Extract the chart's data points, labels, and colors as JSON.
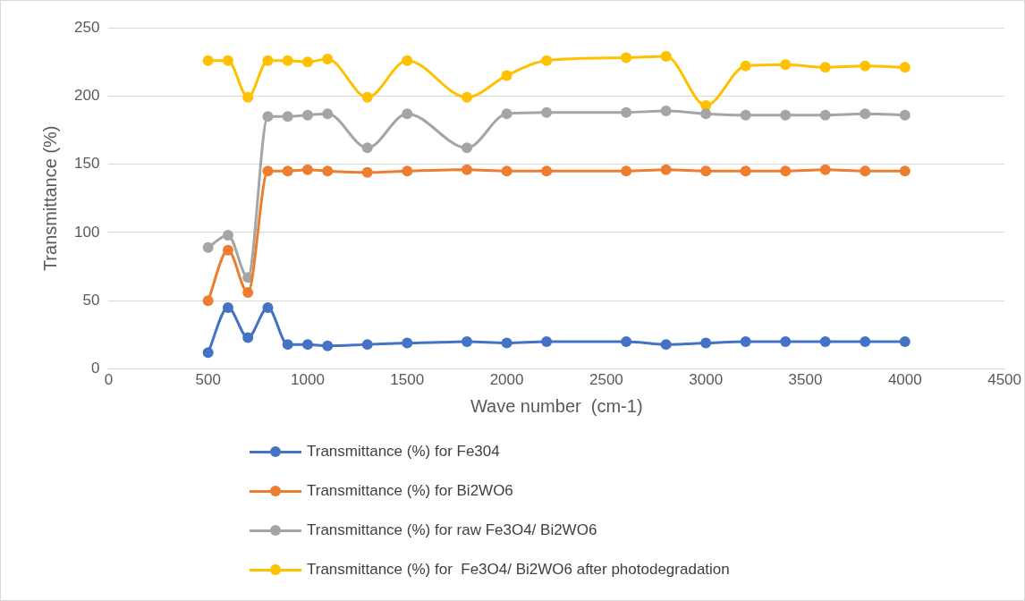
{
  "chart_data": {
    "type": "line",
    "xlabel": "Wave number  (cm-1)",
    "ylabel": "Transmittance (%)",
    "x": [
      500,
      600,
      700,
      800,
      900,
      1000,
      1100,
      1300,
      1500,
      1800,
      2000,
      2200,
      2600,
      2800,
      3000,
      3200,
      3400,
      3600,
      3800,
      4000
    ],
    "xlim": [
      0,
      4500
    ],
    "xticks": [
      0,
      500,
      1000,
      1500,
      2000,
      2500,
      3000,
      3500,
      4000,
      4500
    ],
    "ylim": [
      0,
      250
    ],
    "yticks": [
      0,
      50,
      100,
      150,
      200,
      250
    ],
    "grid": "y",
    "legend": "bottom",
    "marker": "circle",
    "line_style": "solid",
    "series": [
      {
        "name": "Transmittance (%) for Fe304",
        "color": "#4472c4",
        "values": [
          12,
          45,
          23,
          45,
          18,
          18,
          17,
          18,
          19,
          20,
          19,
          20,
          20,
          18,
          19,
          20,
          20,
          20,
          20,
          20
        ]
      },
      {
        "name": "Transmittance (%) for Bi2WO6",
        "color": "#ed7d31",
        "values": [
          50,
          87,
          56,
          145,
          145,
          146,
          145,
          144,
          145,
          146,
          145,
          145,
          145,
          146,
          145,
          145,
          145,
          146,
          145,
          145
        ]
      },
      {
        "name": "Transmittance (%) for raw Fe3O4/ Bi2WO6",
        "color": "#a5a5a5",
        "values": [
          89,
          98,
          67,
          185,
          185,
          186,
          187,
          162,
          187,
          162,
          187,
          188,
          188,
          189,
          187,
          186,
          186,
          186,
          187,
          186
        ]
      },
      {
        "name": "Transmittance (%) for  Fe3O4/ Bi2WO6 after photodegradation",
        "color": "#ffc000",
        "values": [
          226,
          226,
          199,
          226,
          226,
          225,
          227,
          199,
          226,
          199,
          215,
          226,
          228,
          229,
          193,
          222,
          223,
          221,
          222,
          221
        ]
      }
    ]
  }
}
